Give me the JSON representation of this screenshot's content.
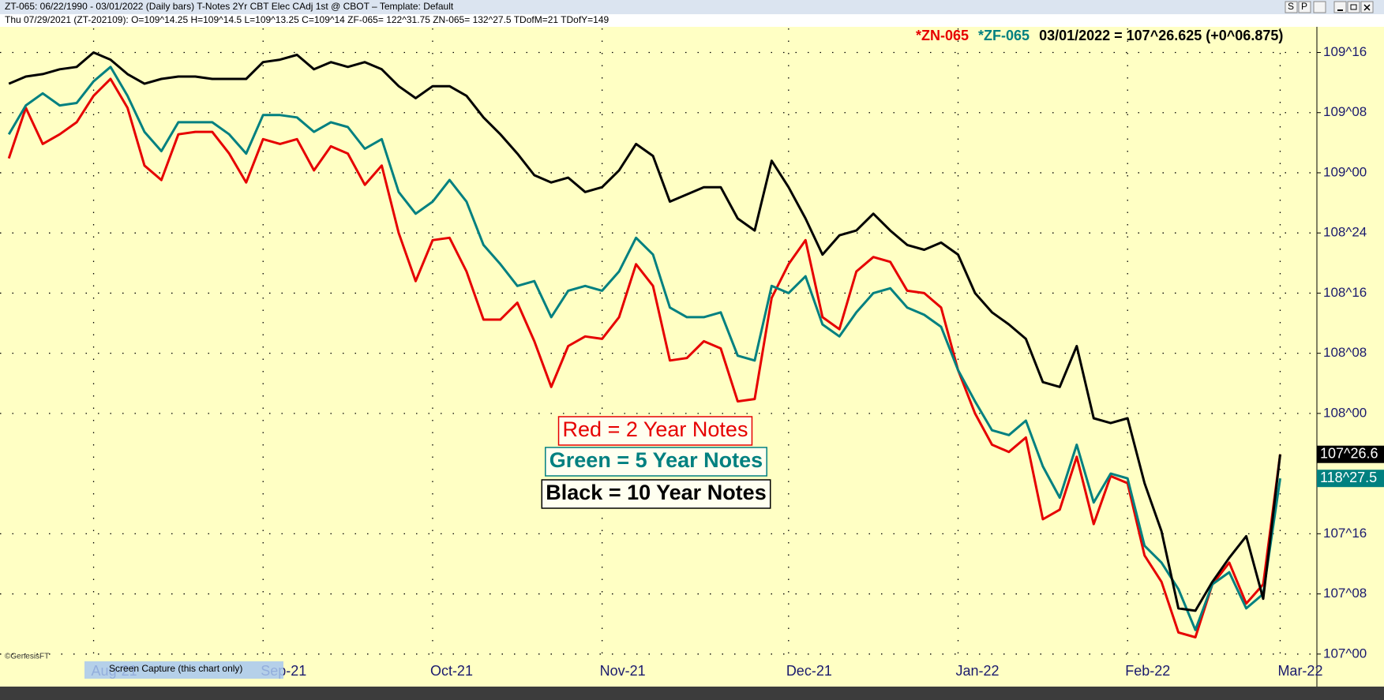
{
  "header": {
    "line1": "ZT-065:  06/22/1990 - 03/01/2022  (Daily bars)   T-Notes 2Yr CBT Elec CAdj 1st @ CBOT  –  Template: Default",
    "line2": "Thu  07/29/2021 (ZT-202109):  O=109^14.25  H=109^14.5  L=109^13.25  C=109^14  ZF-065= 122^31.75  ZN-065= 132^27.5  TDofM=21  TDofY=149",
    "buttons": [
      "S",
      "P"
    ]
  },
  "footer": {
    "copyright": "©GenesisFT",
    "tooltip": "Screen Capture (this chart only)"
  },
  "chart_data": {
    "type": "line",
    "legend_items": [
      {
        "text": "*ZN-065",
        "color": "#e60000"
      },
      {
        "text": "*ZF-065",
        "color": "#008080"
      },
      {
        "text": "03/01/2022 = 107^26.625 (+0^06.875)",
        "color": "#000000"
      }
    ],
    "categories": [
      null,
      null,
      null,
      null,
      null,
      "Aug-21",
      null,
      null,
      null,
      null,
      null,
      null,
      null,
      null,
      null,
      "Sep-21",
      null,
      null,
      null,
      null,
      null,
      null,
      null,
      null,
      null,
      "Oct-21",
      null,
      null,
      null,
      null,
      null,
      null,
      null,
      null,
      null,
      "Nov-21",
      null,
      null,
      null,
      null,
      null,
      null,
      null,
      null,
      null,
      null,
      "Dec-21",
      null,
      null,
      null,
      null,
      null,
      null,
      null,
      null,
      null,
      "Jan-22",
      null,
      null,
      null,
      null,
      null,
      null,
      null,
      null,
      null,
      "Feb-22",
      null,
      null,
      null,
      null,
      null,
      null,
      null,
      null,
      "Mar-22"
    ],
    "series": [
      {
        "name": "Red =  2 Year Notes",
        "color": "#e60000",
        "values": [
          109.06,
          109.27,
          109.12,
          109.16,
          109.21,
          109.32,
          109.39,
          109.27,
          109.03,
          108.97,
          109.16,
          109.17,
          109.17,
          109.08,
          108.96,
          109.14,
          109.12,
          109.14,
          109.01,
          109.11,
          109.08,
          108.95,
          109.03,
          108.75,
          108.55,
          108.72,
          108.73,
          108.59,
          108.39,
          108.39,
          108.46,
          108.3,
          108.11,
          108.28,
          108.32,
          108.31,
          108.4,
          108.62,
          108.53,
          108.22,
          108.23,
          108.3,
          108.27,
          108.05,
          108.06,
          108.48,
          108.62,
          108.72,
          108.4,
          108.35,
          108.59,
          108.65,
          108.63,
          108.51,
          108.5,
          108.44,
          108.18,
          108.0,
          107.87,
          107.84,
          107.9,
          107.56,
          107.6,
          107.82,
          107.54,
          107.74,
          107.71,
          107.41,
          107.3,
          107.09,
          107.07,
          107.29,
          107.38,
          107.21,
          107.29,
          107.83
        ]
      },
      {
        "name": "Green = 5 Year Notes",
        "color": "#008080",
        "last_label": "118^27.5",
        "values": [
          109.16,
          109.28,
          109.33,
          109.28,
          109.29,
          109.38,
          109.44,
          109.32,
          109.17,
          109.09,
          109.21,
          109.21,
          109.21,
          109.16,
          109.08,
          109.24,
          109.24,
          109.23,
          109.17,
          109.21,
          109.19,
          109.1,
          109.14,
          108.92,
          108.83,
          108.88,
          108.97,
          108.88,
          108.7,
          108.62,
          108.53,
          108.55,
          108.4,
          108.51,
          108.53,
          108.51,
          108.59,
          108.73,
          108.66,
          108.44,
          108.4,
          108.4,
          108.42,
          108.24,
          108.22,
          108.53,
          108.5,
          108.57,
          108.37,
          108.32,
          108.42,
          108.5,
          108.52,
          108.44,
          108.41,
          108.36,
          108.18,
          108.05,
          107.93,
          107.91,
          107.97,
          107.78,
          107.65,
          107.87,
          107.63,
          107.75,
          107.73,
          107.45,
          107.38,
          107.27,
          107.1,
          107.29,
          107.34,
          107.19,
          107.25,
          107.73
        ]
      },
      {
        "name": "Black = 10 Year Notes",
        "color": "#000000",
        "last_label": "107^26.6",
        "values": [
          109.37,
          109.4,
          109.41,
          109.43,
          109.44,
          109.5,
          109.47,
          109.41,
          109.37,
          109.39,
          109.4,
          109.4,
          109.39,
          109.39,
          109.39,
          109.46,
          109.47,
          109.49,
          109.43,
          109.46,
          109.44,
          109.46,
          109.43,
          109.36,
          109.31,
          109.36,
          109.36,
          109.32,
          109.23,
          109.16,
          109.08,
          108.99,
          108.96,
          108.98,
          108.92,
          108.94,
          109.01,
          109.12,
          109.07,
          108.88,
          108.91,
          108.94,
          108.94,
          108.81,
          108.76,
          109.05,
          108.94,
          108.81,
          108.66,
          108.74,
          108.76,
          108.83,
          108.76,
          108.7,
          108.68,
          108.71,
          108.66,
          108.5,
          108.42,
          108.37,
          108.31,
          108.13,
          108.11,
          108.28,
          107.98,
          107.96,
          107.98,
          107.71,
          107.51,
          107.19,
          107.18,
          107.3,
          107.4,
          107.49,
          107.23,
          107.83
        ]
      }
    ],
    "ylim": [
      106.96,
      109.6
    ],
    "yticks": [
      {
        "value": 107.0,
        "label": "107^00"
      },
      {
        "value": 107.25,
        "label": "107^08"
      },
      {
        "value": 107.5,
        "label": "107^16"
      },
      {
        "value": 108.0,
        "label": "108^00"
      },
      {
        "value": 108.25,
        "label": "108^08"
      },
      {
        "value": 108.5,
        "label": "108^16"
      },
      {
        "value": 108.75,
        "label": "108^24"
      },
      {
        "value": 109.0,
        "label": "109^00"
      },
      {
        "value": 109.25,
        "label": "109^08"
      },
      {
        "value": 109.5,
        "label": "109^16"
      }
    ],
    "grid": true
  }
}
